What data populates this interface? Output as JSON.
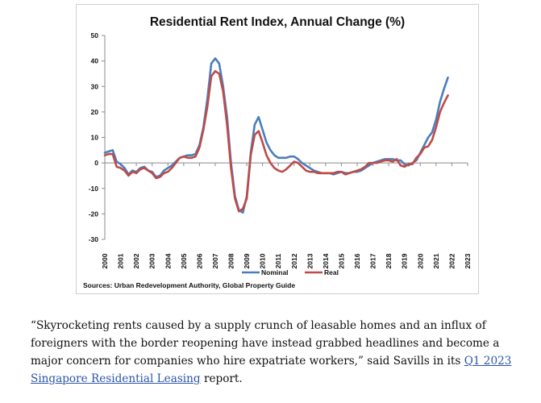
{
  "chart_data": {
    "type": "line",
    "title": "Residential Rent Index, Annual Change (%)",
    "xlabel": "",
    "ylabel": "",
    "ylim": [
      -30,
      50
    ],
    "yticks": [
      50,
      40,
      30,
      20,
      10,
      0,
      -10,
      -20,
      -30
    ],
    "xlim": [
      2000,
      2023
    ],
    "xticks": [
      "2000",
      "2001",
      "2002",
      "2003",
      "2004",
      "2005",
      "2006",
      "2007",
      "2008",
      "2009",
      "2010",
      "2011",
      "2012",
      "2013",
      "2014",
      "2015",
      "2016",
      "2017",
      "2018",
      "2019",
      "2020",
      "2021",
      "2022",
      "2023"
    ],
    "legend_position": "bottom",
    "grid": false,
    "series": [
      {
        "name": "Nominal",
        "color": "#4a7ebb",
        "points": [
          [
            2000.0,
            4
          ],
          [
            2000.25,
            4.5
          ],
          [
            2000.5,
            5
          ],
          [
            2000.75,
            0.5
          ],
          [
            2001.0,
            -0.5
          ],
          [
            2001.25,
            -2
          ],
          [
            2001.5,
            -4.5
          ],
          [
            2001.75,
            -3
          ],
          [
            2002.0,
            -3.5
          ],
          [
            2002.25,
            -2
          ],
          [
            2002.5,
            -1.5
          ],
          [
            2002.75,
            -3
          ],
          [
            2003.0,
            -3.5
          ],
          [
            2003.25,
            -5.5
          ],
          [
            2003.5,
            -5
          ],
          [
            2003.75,
            -3
          ],
          [
            2004.0,
            -2
          ],
          [
            2004.25,
            -1
          ],
          [
            2004.5,
            0.5
          ],
          [
            2004.75,
            2
          ],
          [
            2005.0,
            2.5
          ],
          [
            2005.25,
            3
          ],
          [
            2005.5,
            3
          ],
          [
            2005.75,
            3.5
          ],
          [
            2006.0,
            7
          ],
          [
            2006.25,
            14
          ],
          [
            2006.5,
            25
          ],
          [
            2006.75,
            39
          ],
          [
            2007.0,
            41
          ],
          [
            2007.25,
            39
          ],
          [
            2007.5,
            30
          ],
          [
            2007.75,
            18
          ],
          [
            2008.0,
            0
          ],
          [
            2008.25,
            -13
          ],
          [
            2008.5,
            -18.5
          ],
          [
            2008.75,
            -19.5
          ],
          [
            2009.0,
            -13
          ],
          [
            2009.25,
            4
          ],
          [
            2009.5,
            15
          ],
          [
            2009.75,
            18
          ],
          [
            2010.0,
            13
          ],
          [
            2010.25,
            8
          ],
          [
            2010.5,
            5
          ],
          [
            2010.75,
            3
          ],
          [
            2011.0,
            2
          ],
          [
            2011.25,
            2
          ],
          [
            2011.5,
            2
          ],
          [
            2011.75,
            2.5
          ],
          [
            2012.0,
            2.5
          ],
          [
            2012.25,
            1.5
          ],
          [
            2012.5,
            0
          ],
          [
            2012.75,
            -1
          ],
          [
            2013.0,
            -2
          ],
          [
            2013.25,
            -3
          ],
          [
            2013.5,
            -3.5
          ],
          [
            2013.75,
            -4
          ],
          [
            2014.0,
            -4
          ],
          [
            2014.25,
            -4
          ],
          [
            2014.5,
            -4.5
          ],
          [
            2014.75,
            -4
          ],
          [
            2015.0,
            -3.5
          ],
          [
            2015.25,
            -4
          ],
          [
            2015.5,
            -4
          ],
          [
            2015.75,
            -3.5
          ],
          [
            2016.0,
            -3.5
          ],
          [
            2016.25,
            -3
          ],
          [
            2016.5,
            -2
          ],
          [
            2016.75,
            -1
          ],
          [
            2017.0,
            0
          ],
          [
            2017.25,
            0.5
          ],
          [
            2017.5,
            1
          ],
          [
            2017.75,
            1.5
          ],
          [
            2018.0,
            1.5
          ],
          [
            2018.25,
            1.5
          ],
          [
            2018.5,
            1
          ],
          [
            2018.75,
            1
          ],
          [
            2019.0,
            -0.5
          ],
          [
            2019.25,
            -1
          ],
          [
            2019.5,
            0
          ],
          [
            2019.75,
            1
          ],
          [
            2020.0,
            4
          ],
          [
            2020.25,
            7
          ],
          [
            2020.5,
            10
          ],
          [
            2020.75,
            12
          ],
          [
            2021.0,
            17
          ],
          [
            2021.25,
            24
          ],
          [
            2021.5,
            29
          ],
          [
            2021.75,
            33.5
          ]
        ]
      },
      {
        "name": "Real",
        "color": "#be4b48",
        "points": [
          [
            2000.0,
            3
          ],
          [
            2000.25,
            3.5
          ],
          [
            2000.5,
            3.5
          ],
          [
            2000.75,
            -1.5
          ],
          [
            2001.0,
            -2
          ],
          [
            2001.25,
            -3
          ],
          [
            2001.5,
            -5
          ],
          [
            2001.75,
            -3.5
          ],
          [
            2002.0,
            -4
          ],
          [
            2002.25,
            -2.5
          ],
          [
            2002.5,
            -2
          ],
          [
            2002.75,
            -3
          ],
          [
            2003.0,
            -4
          ],
          [
            2003.25,
            -6
          ],
          [
            2003.5,
            -5.5
          ],
          [
            2003.75,
            -4
          ],
          [
            2004.0,
            -3.5
          ],
          [
            2004.25,
            -2
          ],
          [
            2004.5,
            0
          ],
          [
            2004.75,
            2
          ],
          [
            2005.0,
            2.5
          ],
          [
            2005.25,
            2
          ],
          [
            2005.5,
            2
          ],
          [
            2005.75,
            2.5
          ],
          [
            2006.0,
            6
          ],
          [
            2006.25,
            13
          ],
          [
            2006.5,
            22
          ],
          [
            2006.75,
            34
          ],
          [
            2007.0,
            36
          ],
          [
            2007.25,
            35
          ],
          [
            2007.5,
            28
          ],
          [
            2007.75,
            15
          ],
          [
            2008.0,
            -2
          ],
          [
            2008.25,
            -14
          ],
          [
            2008.5,
            -19
          ],
          [
            2008.75,
            -18
          ],
          [
            2009.0,
            -14
          ],
          [
            2009.25,
            3
          ],
          [
            2009.5,
            11
          ],
          [
            2009.75,
            12.5
          ],
          [
            2010.0,
            8
          ],
          [
            2010.25,
            3
          ],
          [
            2010.5,
            0
          ],
          [
            2010.75,
            -2
          ],
          [
            2011.0,
            -3
          ],
          [
            2011.25,
            -3.5
          ],
          [
            2011.5,
            -2.5
          ],
          [
            2011.75,
            -1
          ],
          [
            2012.0,
            0.5
          ],
          [
            2012.25,
            0
          ],
          [
            2012.5,
            -1.5
          ],
          [
            2012.75,
            -3
          ],
          [
            2013.0,
            -3.5
          ],
          [
            2013.25,
            -3.5
          ],
          [
            2013.5,
            -4
          ],
          [
            2013.75,
            -4
          ],
          [
            2014.0,
            -4
          ],
          [
            2014.25,
            -4
          ],
          [
            2014.5,
            -4
          ],
          [
            2014.75,
            -3.5
          ],
          [
            2015.0,
            -3.5
          ],
          [
            2015.25,
            -4.5
          ],
          [
            2015.5,
            -4
          ],
          [
            2015.75,
            -3.5
          ],
          [
            2016.0,
            -3
          ],
          [
            2016.25,
            -2.5
          ],
          [
            2016.5,
            -1.5
          ],
          [
            2016.75,
            0
          ],
          [
            2017.0,
            0
          ],
          [
            2017.25,
            0
          ],
          [
            2017.5,
            0.5
          ],
          [
            2017.75,
            1
          ],
          [
            2018.0,
            1
          ],
          [
            2018.25,
            0.5
          ],
          [
            2018.5,
            1.5
          ],
          [
            2018.75,
            -1
          ],
          [
            2019.0,
            -1.5
          ],
          [
            2019.25,
            -0.5
          ],
          [
            2019.5,
            -0.5
          ],
          [
            2019.75,
            2
          ],
          [
            2020.0,
            3.5
          ],
          [
            2020.25,
            6
          ],
          [
            2020.5,
            6.5
          ],
          [
            2020.75,
            9
          ],
          [
            2021.0,
            14
          ],
          [
            2021.25,
            20
          ],
          [
            2021.5,
            23.5
          ],
          [
            2021.75,
            26.5
          ]
        ]
      }
    ],
    "source": "Sources: Urban Redevelopment Authority, Global Property Guide"
  },
  "article": {
    "quote_text": "“Skyrocketing rents caused by a supply crunch of leasable homes and an influx of foreigners with the border reopening have instead grabbed headlines and become a major concern for companies who hire expatriate workers,” said Savills in its ",
    "link_text": "Q1 2023 Singapore Residential Leasing",
    "link_color": "#2a55a8",
    "quote_end": " report."
  }
}
